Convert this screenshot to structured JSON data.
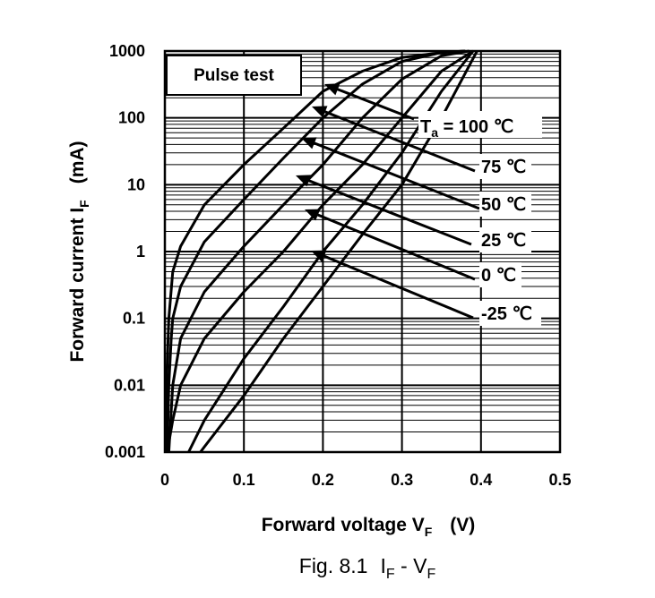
{
  "figure": {
    "caption_prefix": "Fig. 8.1",
    "caption_i": "I",
    "caption_sub1": "F",
    "caption_dash": " - V",
    "caption_sub2": "F"
  },
  "annotation": {
    "box_label": "Pulse test",
    "temp_prefix": "T",
    "temp_prefix_sub": "a",
    "temp_prefix_eq": " = "
  },
  "chart_data": {
    "type": "line",
    "title": "",
    "xlabel": {
      "main": "Forward voltage  V",
      "sub": "F",
      "unit": "(V)"
    },
    "ylabel": {
      "main": "Forward current  I",
      "sub": "F",
      "unit": "(mA)"
    },
    "xlim": [
      0,
      0.5
    ],
    "ylim": [
      0.001,
      1000
    ],
    "yscale": "log",
    "grid": true,
    "x_ticks": [
      "0",
      "0.1",
      "0.2",
      "0.3",
      "0.4",
      "0.5"
    ],
    "x_tick_values": [
      0,
      0.1,
      0.2,
      0.3,
      0.4,
      0.5
    ],
    "y_ticks": [
      "1000",
      "100",
      "10",
      "1",
      "0.1",
      "0.01",
      "0.001"
    ],
    "y_tick_values": [
      1000,
      100,
      10,
      1,
      0.1,
      0.01,
      0.001
    ],
    "series": [
      {
        "name": "100 ℃",
        "x": [
          0.001,
          0.002,
          0.005,
          0.01,
          0.02,
          0.05,
          0.1,
          0.15,
          0.2,
          0.25,
          0.3,
          0.35,
          0.38
        ],
        "y": [
          0.001,
          0.01,
          0.1,
          0.5,
          1.2,
          5,
          20,
          70,
          250,
          500,
          800,
          950,
          1000
        ]
      },
      {
        "name": "75 ℃",
        "x": [
          0.003,
          0.005,
          0.008,
          0.01,
          0.02,
          0.05,
          0.1,
          0.15,
          0.2,
          0.25,
          0.3,
          0.35,
          0.38
        ],
        "y": [
          0.001,
          0.01,
          0.05,
          0.1,
          0.3,
          1.4,
          6,
          25,
          100,
          320,
          700,
          950,
          1000
        ]
      },
      {
        "name": "50 ℃",
        "x": [
          0.005,
          0.01,
          0.02,
          0.05,
          0.1,
          0.15,
          0.2,
          0.25,
          0.3,
          0.35,
          0.385
        ],
        "y": [
          0.001,
          0.01,
          0.05,
          0.25,
          1.2,
          5,
          20,
          100,
          380,
          850,
          1000
        ]
      },
      {
        "name": "25 ℃",
        "x": [
          0.003,
          0.01,
          0.02,
          0.05,
          0.1,
          0.15,
          0.2,
          0.25,
          0.3,
          0.35,
          0.39
        ],
        "y": [
          0.001,
          0.003,
          0.01,
          0.05,
          0.25,
          1,
          5,
          20,
          100,
          500,
          1000
        ]
      },
      {
        "name": "0 ℃",
        "x": [
          0.03,
          0.05,
          0.1,
          0.15,
          0.2,
          0.25,
          0.3,
          0.35,
          0.39
        ],
        "y": [
          0.001,
          0.003,
          0.025,
          0.15,
          1,
          5,
          30,
          250,
          1000
        ]
      },
      {
        "name": "-25 ℃",
        "x": [
          0.045,
          0.05,
          0.1,
          0.15,
          0.2,
          0.25,
          0.3,
          0.35,
          0.395
        ],
        "y": [
          0.001,
          0.0012,
          0.007,
          0.05,
          0.3,
          1.8,
          10,
          100,
          1000
        ]
      }
    ],
    "labels": [
      "100 ℃",
      "75 ℃",
      "50 ℃",
      "25 ℃",
      "0 ℃",
      "-25 ℃"
    ]
  }
}
